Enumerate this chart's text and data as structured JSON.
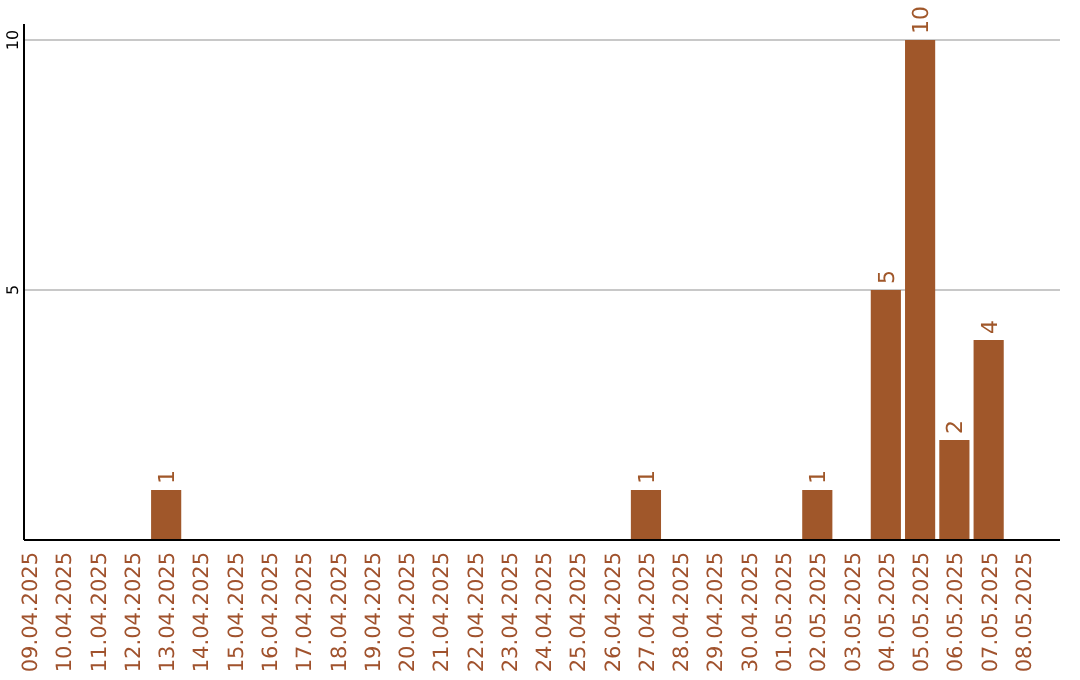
{
  "chart_data": {
    "type": "bar",
    "categories": [
      "09.04.2025",
      "10.04.2025",
      "11.04.2025",
      "12.04.2025",
      "13.04.2025",
      "14.04.2025",
      "15.04.2025",
      "16.04.2025",
      "17.04.2025",
      "18.04.2025",
      "19.04.2025",
      "20.04.2025",
      "21.04.2025",
      "22.04.2025",
      "23.04.2025",
      "24.04.2025",
      "25.04.2025",
      "26.04.2025",
      "27.04.2025",
      "28.04.2025",
      "29.04.2025",
      "30.04.2025",
      "01.05.2025",
      "02.05.2025",
      "03.05.2025",
      "04.05.2025",
      "05.05.2025",
      "06.05.2025",
      "07.05.2025",
      "08.05.2025"
    ],
    "values": [
      0,
      0,
      0,
      0,
      1,
      0,
      0,
      0,
      0,
      0,
      0,
      0,
      0,
      0,
      0,
      0,
      0,
      0,
      1,
      0,
      0,
      0,
      0,
      1,
      0,
      5,
      10,
      2,
      4,
      0
    ],
    "value_labels": [
      null,
      null,
      null,
      null,
      "1",
      null,
      null,
      null,
      null,
      null,
      null,
      null,
      null,
      null,
      null,
      null,
      null,
      null,
      "1",
      null,
      null,
      null,
      null,
      "1",
      null,
      "5",
      "10",
      "2",
      "4",
      null
    ],
    "color": "#a0572a",
    "ylim": [
      0,
      10
    ],
    "yticks": [
      5,
      10
    ],
    "grid": "y"
  }
}
